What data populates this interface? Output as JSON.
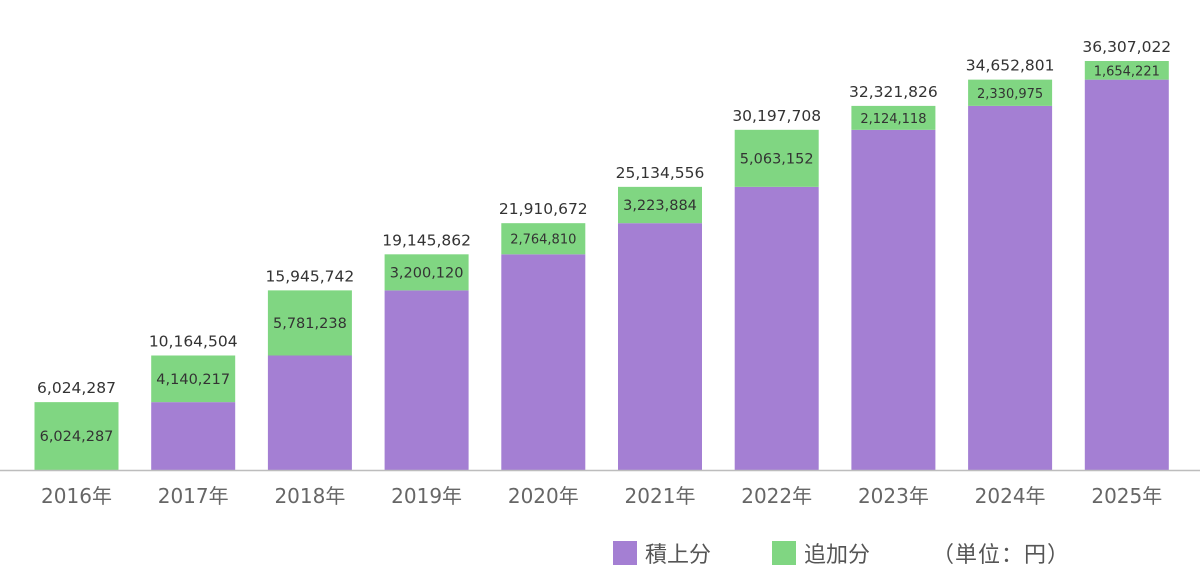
{
  "chart_data": {
    "type": "bar",
    "stacked": true,
    "categories": [
      "2016年",
      "2017年",
      "2018年",
      "2019年",
      "2020年",
      "2021年",
      "2022年",
      "2023年",
      "2024年",
      "2025年"
    ],
    "series": [
      {
        "name": "積上分",
        "color": "#a47fd3",
        "values": [
          0,
          6024287,
          10164504,
          15945742,
          19145862,
          21910672,
          25134556,
          30197708,
          32321826,
          34652801
        ]
      },
      {
        "name": "追加分",
        "color": "#80d682",
        "values": [
          6024287,
          4140217,
          5781238,
          3200120,
          2764810,
          3223884,
          5063152,
          2124118,
          2330975,
          1654221
        ],
        "labels": [
          "6,024,287",
          "4,140,217",
          "5,781,238",
          "3,200,120",
          "2,764,810",
          "3,223,884",
          "5,063,152",
          "2,124,118",
          "2,330,975",
          "1,654,221"
        ]
      }
    ],
    "totals": [
      6024287,
      10164504,
      15945742,
      19145862,
      21910672,
      25134556,
      30197708,
      32321826,
      34652801,
      36307022
    ],
    "total_labels": [
      "6,024,287",
      "10,164,504",
      "15,945,742",
      "19,145,862",
      "21,910,672",
      "25,134,556",
      "30,197,708",
      "32,321,826",
      "34,652,801",
      "36,307,022"
    ],
    "ylim": [
      0,
      36307022
    ],
    "grid": false,
    "legend_position": "bottom-right",
    "unit_label": "（単位：円）"
  }
}
